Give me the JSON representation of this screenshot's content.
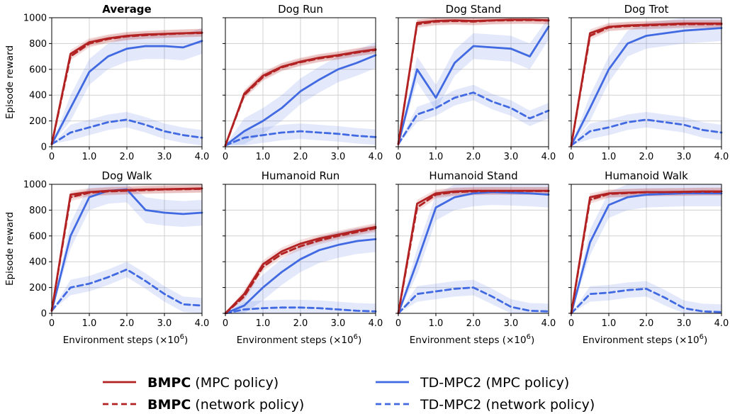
{
  "colors": {
    "bmpc": "#b22222",
    "tdmpc2": "#4169e1"
  },
  "y_axis_label": "Episode reward",
  "x_axis_label": "Environment steps (×10",
  "x_axis_label_exp": "6",
  "x_axis_label_close": ")",
  "legend": [
    {
      "bold": "BMPC",
      "rest": " (MPC policy)",
      "series": "bmpc_mpc",
      "style": "solid"
    },
    {
      "bold": "BMPC",
      "rest": " (network policy)",
      "series": "bmpc_net",
      "style": "dashed"
    },
    {
      "bold": "",
      "rest": "TD-MPC2 (MPC policy)",
      "series": "td_mpc",
      "style": "solid"
    },
    {
      "bold": "",
      "rest": "TD-MPC2 (network policy)",
      "series": "td_net",
      "style": "dashed"
    }
  ],
  "chart_data": [
    {
      "type": "line",
      "title": "Average",
      "title_bold": true,
      "x": [
        0,
        0.5,
        1.0,
        1.5,
        2.0,
        2.5,
        3.0,
        3.5,
        4.0
      ],
      "xlim": [
        0,
        4.0
      ],
      "ylim": [
        0,
        1000
      ],
      "xticks": [
        "0",
        "1.0",
        "2.0",
        "3.0",
        "4.0"
      ],
      "yticks": [
        "0",
        "200",
        "400",
        "600",
        "800",
        "1000"
      ],
      "series": [
        {
          "key": "bmpc_mpc",
          "values": [
            20,
            720,
            810,
            840,
            860,
            870,
            875,
            880,
            885
          ]
        },
        {
          "key": "bmpc_net",
          "values": [
            20,
            700,
            800,
            835,
            855,
            865,
            872,
            878,
            882
          ]
        },
        {
          "key": "td_mpc",
          "values": [
            20,
            300,
            580,
            700,
            760,
            780,
            780,
            770,
            820
          ]
        },
        {
          "key": "td_net",
          "values": [
            20,
            110,
            150,
            190,
            210,
            170,
            120,
            90,
            70
          ]
        }
      ]
    },
    {
      "type": "line",
      "title": "Dog Run",
      "title_bold": false,
      "x": [
        0,
        0.5,
        1.0,
        1.5,
        2.0,
        2.5,
        3.0,
        3.5,
        4.0
      ],
      "xlim": [
        0,
        4.0
      ],
      "ylim": [
        0,
        1000
      ],
      "xticks": [
        "0",
        "1.0",
        "2.0",
        "3.0",
        "4.0"
      ],
      "yticks": [
        "0",
        "200",
        "400",
        "600",
        "800",
        "1000"
      ],
      "series": [
        {
          "key": "bmpc_mpc",
          "values": [
            10,
            410,
            550,
            620,
            660,
            690,
            710,
            735,
            755
          ]
        },
        {
          "key": "bmpc_net",
          "values": [
            10,
            400,
            540,
            615,
            655,
            685,
            705,
            730,
            750
          ]
        },
        {
          "key": "td_mpc",
          "values": [
            10,
            120,
            200,
            300,
            430,
            520,
            600,
            650,
            710
          ]
        },
        {
          "key": "td_net",
          "values": [
            10,
            70,
            90,
            110,
            120,
            110,
            100,
            85,
            75
          ]
        }
      ]
    },
    {
      "type": "line",
      "title": "Dog Stand",
      "title_bold": false,
      "x": [
        0,
        0.5,
        1.0,
        1.5,
        2.0,
        2.5,
        3.0,
        3.5,
        4.0
      ],
      "xlim": [
        0,
        4.0
      ],
      "ylim": [
        0,
        1000
      ],
      "xticks": [
        "0",
        "1.0",
        "2.0",
        "3.0",
        "4.0"
      ],
      "yticks": [
        "0",
        "200",
        "400",
        "600",
        "800",
        "1000"
      ],
      "series": [
        {
          "key": "bmpc_mpc",
          "values": [
            20,
            960,
            975,
            980,
            975,
            980,
            985,
            985,
            980
          ]
        },
        {
          "key": "bmpc_net",
          "values": [
            20,
            950,
            970,
            975,
            970,
            978,
            980,
            982,
            978
          ]
        },
        {
          "key": "td_mpc",
          "values": [
            20,
            600,
            380,
            650,
            780,
            770,
            760,
            700,
            930
          ]
        },
        {
          "key": "td_net",
          "values": [
            20,
            250,
            300,
            380,
            420,
            350,
            300,
            220,
            280
          ]
        }
      ]
    },
    {
      "type": "line",
      "title": "Dog Trot",
      "title_bold": false,
      "x": [
        0,
        0.5,
        1.0,
        1.5,
        2.0,
        2.5,
        3.0,
        3.5,
        4.0
      ],
      "xlim": [
        0,
        4.0
      ],
      "ylim": [
        0,
        1000
      ],
      "xticks": [
        "0",
        "1.0",
        "2.0",
        "3.0",
        "4.0"
      ],
      "yticks": [
        "0",
        "200",
        "400",
        "600",
        "800",
        "1000"
      ],
      "series": [
        {
          "key": "bmpc_mpc",
          "values": [
            10,
            880,
            930,
            940,
            945,
            950,
            955,
            955,
            955
          ]
        },
        {
          "key": "bmpc_net",
          "values": [
            10,
            860,
            925,
            935,
            940,
            945,
            950,
            950,
            950
          ]
        },
        {
          "key": "td_mpc",
          "values": [
            10,
            300,
            600,
            800,
            860,
            880,
            900,
            910,
            920
          ]
        },
        {
          "key": "td_net",
          "values": [
            10,
            120,
            150,
            190,
            210,
            190,
            170,
            130,
            110
          ]
        }
      ]
    },
    {
      "type": "line",
      "title": "Dog Walk",
      "title_bold": false,
      "x": [
        0,
        0.5,
        1.0,
        1.5,
        2.0,
        2.5,
        3.0,
        3.5,
        4.0
      ],
      "xlim": [
        0,
        4.0
      ],
      "ylim": [
        0,
        1000
      ],
      "xticks": [
        "0",
        "1.0",
        "2.0",
        "3.0",
        "4.0"
      ],
      "yticks": [
        "0",
        "200",
        "400",
        "600",
        "800",
        "1000"
      ],
      "series": [
        {
          "key": "bmpc_mpc",
          "values": [
            20,
            920,
            940,
            950,
            955,
            960,
            962,
            965,
            968
          ]
        },
        {
          "key": "bmpc_net",
          "values": [
            20,
            900,
            935,
            945,
            950,
            955,
            960,
            962,
            965
          ]
        },
        {
          "key": "td_mpc",
          "values": [
            20,
            600,
            900,
            950,
            960,
            800,
            780,
            770,
            780
          ]
        },
        {
          "key": "td_net",
          "values": [
            20,
            200,
            230,
            280,
            340,
            250,
            150,
            70,
            60
          ]
        }
      ]
    },
    {
      "type": "line",
      "title": "Humanoid Run",
      "title_bold": false,
      "x": [
        0,
        0.5,
        1.0,
        1.5,
        2.0,
        2.5,
        3.0,
        3.5,
        4.0
      ],
      "xlim": [
        0,
        4.0
      ],
      "ylim": [
        0,
        1000
      ],
      "xticks": [
        "0",
        "1.0",
        "2.0",
        "3.0",
        "4.0"
      ],
      "yticks": [
        "0",
        "200",
        "400",
        "600",
        "800",
        "1000"
      ],
      "series": [
        {
          "key": "bmpc_mpc",
          "values": [
            0,
            150,
            380,
            480,
            540,
            580,
            610,
            640,
            670
          ]
        },
        {
          "key": "bmpc_net",
          "values": [
            0,
            130,
            360,
            460,
            520,
            565,
            600,
            630,
            660
          ]
        },
        {
          "key": "td_mpc",
          "values": [
            0,
            60,
            200,
            320,
            420,
            490,
            530,
            560,
            575
          ]
        },
        {
          "key": "td_net",
          "values": [
            0,
            30,
            40,
            45,
            45,
            40,
            30,
            20,
            15
          ]
        }
      ]
    },
    {
      "type": "line",
      "title": "Humanoid Stand",
      "title_bold": false,
      "x": [
        0,
        0.5,
        1.0,
        1.5,
        2.0,
        2.5,
        3.0,
        3.5,
        4.0
      ],
      "xlim": [
        0,
        4.0
      ],
      "ylim": [
        0,
        1000
      ],
      "xticks": [
        "0",
        "1.0",
        "2.0",
        "3.0",
        "4.0"
      ],
      "yticks": [
        "0",
        "200",
        "400",
        "600",
        "800",
        "1000"
      ],
      "series": [
        {
          "key": "bmpc_mpc",
          "values": [
            0,
            850,
            930,
            945,
            950,
            950,
            950,
            950,
            950
          ]
        },
        {
          "key": "bmpc_net",
          "values": [
            0,
            820,
            920,
            940,
            945,
            948,
            948,
            948,
            948
          ]
        },
        {
          "key": "td_mpc",
          "values": [
            0,
            400,
            820,
            900,
            930,
            940,
            935,
            930,
            920
          ]
        },
        {
          "key": "td_net",
          "values": [
            0,
            150,
            170,
            190,
            200,
            130,
            50,
            20,
            15
          ]
        }
      ]
    },
    {
      "type": "line",
      "title": "Humanoid Walk",
      "title_bold": false,
      "x": [
        0,
        0.5,
        1.0,
        1.5,
        2.0,
        2.5,
        3.0,
        3.5,
        4.0
      ],
      "xlim": [
        0,
        4.0
      ],
      "ylim": [
        0,
        1000
      ],
      "xticks": [
        "0",
        "1.0",
        "2.0",
        "3.0",
        "4.0"
      ],
      "yticks": [
        "0",
        "200",
        "400",
        "600",
        "800",
        "1000"
      ],
      "series": [
        {
          "key": "bmpc_mpc",
          "values": [
            0,
            900,
            930,
            935,
            940,
            940,
            942,
            945,
            945
          ]
        },
        {
          "key": "bmpc_net",
          "values": [
            0,
            880,
            925,
            932,
            938,
            940,
            940,
            942,
            942
          ]
        },
        {
          "key": "td_mpc",
          "values": [
            0,
            550,
            840,
            900,
            920,
            925,
            930,
            930,
            930
          ]
        },
        {
          "key": "td_net",
          "values": [
            0,
            150,
            160,
            180,
            190,
            120,
            40,
            15,
            10
          ]
        }
      ]
    }
  ]
}
